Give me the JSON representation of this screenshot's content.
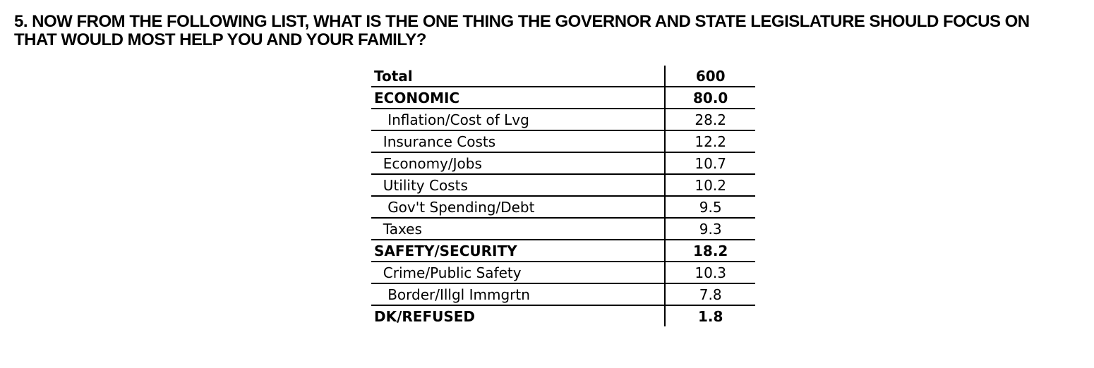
{
  "heading": {
    "line1": "5. NOW FROM THE FOLLOWING LIST, WHAT IS THE ONE THING THE GOVERNOR AND STATE LEGISLATURE SHOULD FOCUS ON",
    "line2": "THAT WOULD MOST HELP YOU AND YOUR FAMILY?"
  },
  "table": {
    "rows": [
      {
        "label": "Total",
        "value": "600",
        "bold": true,
        "indent": 0
      },
      {
        "label": "ECONOMIC",
        "value": "80.0",
        "bold": true,
        "indent": 0
      },
      {
        "label": "Inflation/Cost of Lvg",
        "value": "28.2",
        "bold": false,
        "indent": 3
      },
      {
        "label": "Insurance Costs",
        "value": "12.2",
        "bold": false,
        "indent": 2
      },
      {
        "label": "Economy/Jobs",
        "value": "10.7",
        "bold": false,
        "indent": 2
      },
      {
        "label": "Utility Costs",
        "value": "10.2",
        "bold": false,
        "indent": 2
      },
      {
        "label": "Gov't Spending/Debt",
        "value": "9.5",
        "bold": false,
        "indent": 3
      },
      {
        "label": "Taxes",
        "value": "9.3",
        "bold": false,
        "indent": 2
      },
      {
        "label": "SAFETY/SECURITY",
        "value": "18.2",
        "bold": true,
        "indent": 0
      },
      {
        "label": "Crime/Public Safety",
        "value": "10.3",
        "bold": false,
        "indent": 2
      },
      {
        "label": "Border/Illgl Immgrtn",
        "value": "7.8",
        "bold": false,
        "indent": 3
      },
      {
        "label": "DK/REFUSED",
        "value": "1.8",
        "bold": true,
        "indent": 0
      }
    ]
  },
  "colors": {
    "text": "#000000",
    "background": "#ffffff",
    "table_border": "#000000"
  }
}
